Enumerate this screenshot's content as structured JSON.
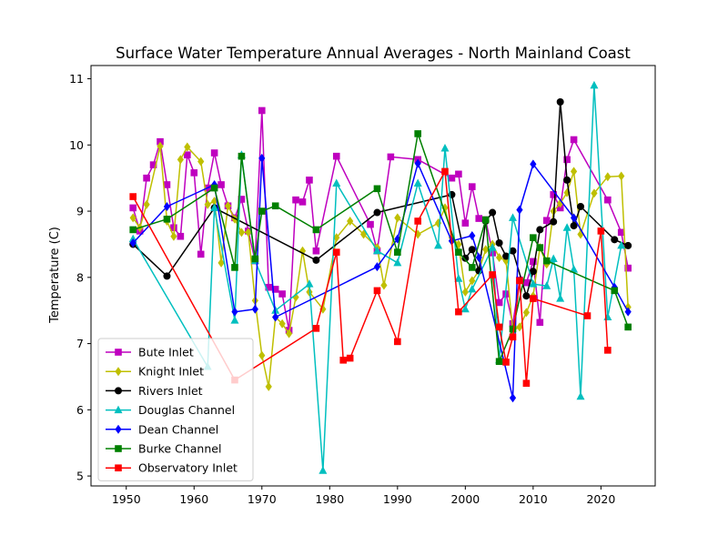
{
  "chart_data": {
    "type": "line",
    "title": "Surface Water Temperature Annual Averages - North Mainland Coast",
    "xlabel": "",
    "ylabel": "Temperature (C)",
    "xlim": [
      1944.8,
      2028.0
    ],
    "ylim": [
      4.85,
      11.2
    ],
    "xticks": [
      1950,
      1960,
      1970,
      1980,
      1990,
      2000,
      2010,
      2020
    ],
    "yticks": [
      5,
      6,
      7,
      8,
      9,
      10,
      11
    ],
    "grid": false,
    "legend_position": "lower-left",
    "series": [
      {
        "name": "Bute Inlet",
        "color": "#bf00bf",
        "marker": "square",
        "points": [
          [
            1951,
            9.05
          ],
          [
            1952,
            8.7
          ],
          [
            1953,
            9.5
          ],
          [
            1954,
            9.7
          ],
          [
            1955,
            10.05
          ],
          [
            1956,
            9.4
          ],
          [
            1957,
            8.75
          ],
          [
            1958,
            8.62
          ],
          [
            1959,
            9.85
          ],
          [
            1960,
            9.58
          ],
          [
            1961,
            8.35
          ],
          [
            1962,
            9.35
          ],
          [
            1963,
            9.88
          ],
          [
            1964,
            9.4
          ],
          [
            1965,
            9.08
          ],
          [
            1966,
            8.9
          ],
          [
            1967,
            9.18
          ],
          [
            1968,
            8.7
          ],
          [
            1969,
            8.25
          ],
          [
            1970,
            10.52
          ],
          [
            1971,
            7.85
          ],
          [
            1972,
            7.82
          ],
          [
            1973,
            7.75
          ],
          [
            1974,
            7.2
          ],
          [
            1975,
            9.17
          ],
          [
            1976,
            9.14
          ],
          [
            1977,
            9.47
          ],
          [
            1978,
            8.4
          ],
          [
            1981,
            9.83
          ],
          [
            1986,
            8.8
          ],
          [
            1987,
            8.4
          ],
          [
            1989,
            9.82
          ],
          [
            1993,
            9.78
          ],
          [
            1998,
            9.5
          ],
          [
            1999,
            9.56
          ],
          [
            2000,
            8.82
          ],
          [
            2001,
            9.37
          ],
          [
            2002,
            8.89
          ],
          [
            2003,
            8.87
          ],
          [
            2004,
            8.37
          ],
          [
            2005,
            7.62
          ],
          [
            2006,
            7.75
          ],
          [
            2007,
            7.3
          ],
          [
            2008,
            7.96
          ],
          [
            2009,
            7.92
          ],
          [
            2010,
            8.24
          ],
          [
            2011,
            7.32
          ],
          [
            2012,
            8.86
          ],
          [
            2013,
            9.25
          ],
          [
            2014,
            9.05
          ],
          [
            2015,
            9.78
          ],
          [
            2016,
            10.08
          ],
          [
            2021,
            9.17
          ],
          [
            2023,
            8.68
          ],
          [
            2024,
            8.14
          ]
        ]
      },
      {
        "name": "Knight Inlet",
        "color": "#bfbf00",
        "marker": "diamond",
        "points": [
          [
            1951,
            8.9
          ],
          [
            1952,
            8.75
          ],
          [
            1953,
            9.1
          ],
          [
            1955,
            9.98
          ],
          [
            1956,
            8.85
          ],
          [
            1957,
            8.62
          ],
          [
            1958,
            9.78
          ],
          [
            1959,
            9.97
          ],
          [
            1961,
            9.75
          ],
          [
            1962,
            9.1
          ],
          [
            1963,
            9.15
          ],
          [
            1964,
            8.22
          ],
          [
            1965,
            9.08
          ],
          [
            1966,
            8.88
          ],
          [
            1967,
            8.68
          ],
          [
            1968,
            8.68
          ],
          [
            1969,
            7.65
          ],
          [
            1970,
            6.82
          ],
          [
            1971,
            6.35
          ],
          [
            1972,
            7.4
          ],
          [
            1973,
            7.3
          ],
          [
            1974,
            7.15
          ],
          [
            1975,
            7.7
          ],
          [
            1976,
            8.4
          ],
          [
            1977,
            7.78
          ],
          [
            1979,
            7.52
          ],
          [
            1981,
            8.6
          ],
          [
            1983,
            8.85
          ],
          [
            1985,
            8.65
          ],
          [
            1987,
            8.45
          ],
          [
            1988,
            7.88
          ],
          [
            1990,
            8.9
          ],
          [
            1993,
            8.65
          ],
          [
            1996,
            8.82
          ],
          [
            1997,
            9.05
          ],
          [
            1998,
            8.6
          ],
          [
            1999,
            8.5
          ],
          [
            2000,
            7.78
          ],
          [
            2001,
            7.95
          ],
          [
            2002,
            8.1
          ],
          [
            2003,
            8.42
          ],
          [
            2004,
            8.5
          ],
          [
            2005,
            8.3
          ],
          [
            2006,
            8.25
          ],
          [
            2007,
            7.2
          ],
          [
            2008,
            7.25
          ],
          [
            2009,
            7.47
          ],
          [
            2010,
            7.72
          ],
          [
            2011,
            8.45
          ],
          [
            2012,
            8.2
          ],
          [
            2013,
            9.0
          ],
          [
            2014,
            9.12
          ],
          [
            2015,
            9.28
          ],
          [
            2016,
            9.6
          ],
          [
            2017,
            8.65
          ],
          [
            2019,
            9.27
          ],
          [
            2021,
            9.52
          ],
          [
            2023,
            9.53
          ],
          [
            2024,
            7.55
          ]
        ]
      },
      {
        "name": "Rivers Inlet",
        "color": "#000000",
        "marker": "circle",
        "points": [
          [
            1951,
            8.5
          ],
          [
            1956,
            8.02
          ],
          [
            1963,
            9.05
          ],
          [
            1978,
            8.26
          ],
          [
            1987,
            8.98
          ],
          [
            1998,
            9.25
          ],
          [
            2000,
            8.29
          ],
          [
            2001,
            8.42
          ],
          [
            2002,
            8.1
          ],
          [
            2003,
            8.85
          ],
          [
            2004,
            8.98
          ],
          [
            2005,
            8.52
          ],
          [
            2006,
            8.32
          ],
          [
            2007,
            8.4
          ],
          [
            2009,
            7.72
          ],
          [
            2010,
            8.09
          ],
          [
            2011,
            8.72
          ],
          [
            2013,
            8.84
          ],
          [
            2014,
            10.65
          ],
          [
            2015,
            9.47
          ],
          [
            2016,
            8.78
          ],
          [
            2017,
            9.07
          ],
          [
            2022,
            8.57
          ],
          [
            2024,
            8.48
          ]
        ]
      },
      {
        "name": "Douglas Channel",
        "color": "#00bfbf",
        "marker": "triangle",
        "points": [
          [
            1951,
            8.58
          ],
          [
            1962,
            6.65
          ],
          [
            1963,
            9.05
          ],
          [
            1966,
            7.35
          ],
          [
            1967,
            9.85
          ],
          [
            1969,
            8.25
          ],
          [
            1972,
            7.5
          ],
          [
            1977,
            7.9
          ],
          [
            1979,
            5.08
          ],
          [
            1981,
            9.42
          ],
          [
            1987,
            8.4
          ],
          [
            1990,
            8.22
          ],
          [
            1993,
            9.42
          ],
          [
            1996,
            8.48
          ],
          [
            1997,
            9.95
          ],
          [
            1999,
            7.98
          ],
          [
            2000,
            7.52
          ],
          [
            2001,
            7.82
          ],
          [
            2004,
            8.45
          ],
          [
            2005,
            6.75
          ],
          [
            2007,
            8.9
          ],
          [
            2010,
            7.9
          ],
          [
            2012,
            7.87
          ],
          [
            2013,
            8.28
          ],
          [
            2014,
            7.68
          ],
          [
            2015,
            8.75
          ],
          [
            2016,
            8.12
          ],
          [
            2017,
            6.2
          ],
          [
            2019,
            10.9
          ],
          [
            2021,
            7.4
          ],
          [
            2023,
            8.48
          ]
        ]
      },
      {
        "name": "Dean Channel",
        "color": "#0000ff",
        "marker": "diamond",
        "points": [
          [
            1951,
            8.52
          ],
          [
            1956,
            9.07
          ],
          [
            1963,
            9.4
          ],
          [
            1966,
            7.48
          ],
          [
            1969,
            7.52
          ],
          [
            1970,
            9.8
          ],
          [
            1972,
            7.4
          ],
          [
            1987,
            8.16
          ],
          [
            1990,
            8.58
          ],
          [
            1993,
            9.72
          ],
          [
            1998,
            8.55
          ],
          [
            2001,
            8.63
          ],
          [
            2002,
            8.3
          ],
          [
            2007,
            6.18
          ],
          [
            2008,
            9.02
          ],
          [
            2010,
            9.71
          ],
          [
            2016,
            8.9
          ],
          [
            2022,
            7.85
          ],
          [
            2024,
            7.48
          ]
        ]
      },
      {
        "name": "Burke Channel",
        "color": "#008000",
        "marker": "square",
        "points": [
          [
            1951,
            8.72
          ],
          [
            1956,
            8.88
          ],
          [
            1963,
            9.35
          ],
          [
            1966,
            8.15
          ],
          [
            1967,
            9.83
          ],
          [
            1969,
            8.28
          ],
          [
            1970,
            9.0
          ],
          [
            1972,
            9.08
          ],
          [
            1978,
            8.72
          ],
          [
            1987,
            9.34
          ],
          [
            1990,
            8.38
          ],
          [
            1993,
            10.17
          ],
          [
            1999,
            8.38
          ],
          [
            2001,
            8.15
          ],
          [
            2003,
            8.87
          ],
          [
            2005,
            6.73
          ],
          [
            2007,
            7.22
          ],
          [
            2010,
            8.6
          ],
          [
            2011,
            8.45
          ],
          [
            2012,
            8.25
          ],
          [
            2022,
            7.8
          ],
          [
            2024,
            7.25
          ]
        ]
      },
      {
        "name": "Observatory Inlet",
        "color": "#ff0000",
        "marker": "square",
        "points": [
          [
            1951,
            9.22
          ],
          [
            1966,
            6.45
          ],
          [
            1978,
            7.23
          ],
          [
            1981,
            8.38
          ],
          [
            1982,
            6.75
          ],
          [
            1983,
            6.78
          ],
          [
            1987,
            7.8
          ],
          [
            1990,
            7.03
          ],
          [
            1993,
            8.85
          ],
          [
            1997,
            9.6
          ],
          [
            1999,
            7.48
          ],
          [
            2004,
            8.04
          ],
          [
            2005,
            7.25
          ],
          [
            2006,
            6.72
          ],
          [
            2007,
            7.1
          ],
          [
            2008,
            7.95
          ],
          [
            2009,
            6.4
          ],
          [
            2010,
            7.68
          ],
          [
            2018,
            7.42
          ],
          [
            2020,
            8.7
          ],
          [
            2021,
            6.9
          ]
        ]
      }
    ]
  }
}
